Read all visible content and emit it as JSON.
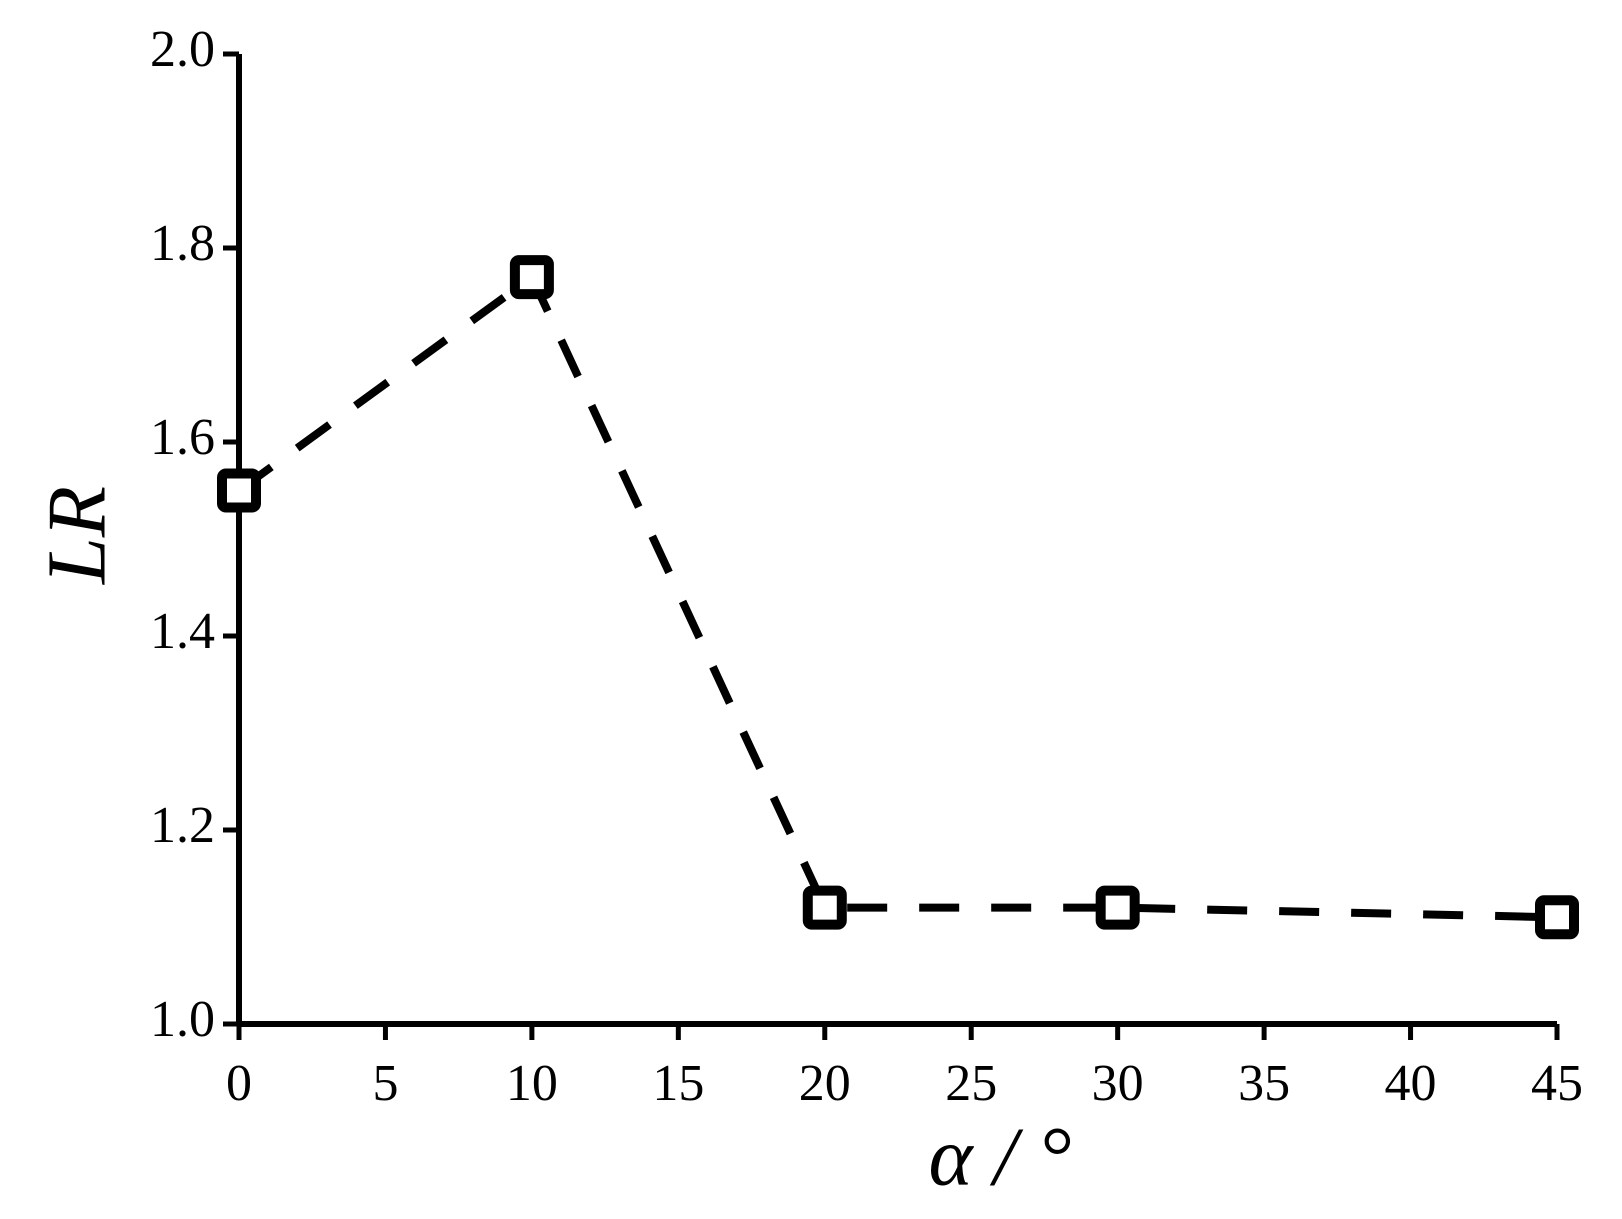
{
  "chart_data": {
    "type": "line",
    "x_label": "α / °",
    "y_label": "LR",
    "x": [
      0,
      10,
      20,
      30,
      45
    ],
    "series": [
      {
        "name": "LR",
        "color": "#000000",
        "values": [
          1.55,
          1.77,
          1.12,
          1.12,
          1.11
        ]
      }
    ],
    "xlim": [
      0,
      45
    ],
    "xticks": [
      0,
      5,
      10,
      15,
      20,
      25,
      30,
      35,
      40,
      45
    ],
    "ylim": [
      1,
      2
    ],
    "yticks": [
      {
        "value": 1,
        "label": "1.0"
      },
      1.2,
      1.4,
      1.6,
      1.8,
      {
        "value": 2,
        "label": "2.0"
      }
    ],
    "grid": false,
    "legend": false
  }
}
